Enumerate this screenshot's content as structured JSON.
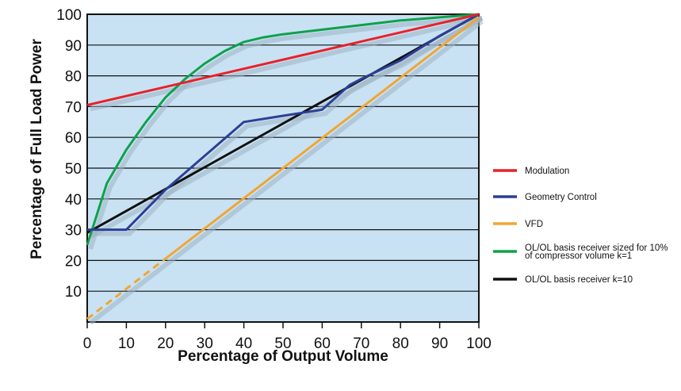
{
  "chart_data": {
    "type": "line",
    "xlabel": "Percentage of Output Volume",
    "ylabel": "Percentage of Full Load Power",
    "xlim": [
      0,
      100
    ],
    "ylim": [
      0,
      100
    ],
    "x_ticks": [
      "0",
      "10",
      "20",
      "30",
      "40",
      "50",
      "60",
      "70",
      "80",
      "90",
      "100"
    ],
    "y_ticks": [
      "10",
      "20",
      "30",
      "40",
      "50",
      "60",
      "70",
      "80",
      "90",
      "100"
    ],
    "grid": "horizontal",
    "plot_background": "#c8e2f3",
    "legend_position": "right",
    "series": [
      {
        "name": "Modulation",
        "color": "#e8212a",
        "points": [
          [
            0,
            70.5
          ],
          [
            100,
            100
          ]
        ]
      },
      {
        "name": "Geometry Control",
        "color": "#2c3f96",
        "points": [
          [
            0,
            30
          ],
          [
            10,
            30
          ],
          [
            20,
            43
          ],
          [
            30,
            54
          ],
          [
            40,
            65
          ],
          [
            50,
            67
          ],
          [
            60,
            69
          ],
          [
            67,
            77
          ],
          [
            70,
            79
          ],
          [
            80,
            85
          ],
          [
            90,
            93
          ],
          [
            100,
            100
          ]
        ]
      },
      {
        "name": "VFD",
        "color": "#f2a532",
        "dashed_until_x": 20,
        "points": [
          [
            0,
            1
          ],
          [
            100,
            99
          ]
        ]
      },
      {
        "name": "OL/OL basis receiver sized for 10% of compressor volume k=1",
        "label_lines": [
          "OL/OL basis receiver sized for 10%",
          "of compressor volume k=1"
        ],
        "color": "#0ea14b",
        "points": [
          [
            0,
            25
          ],
          [
            2,
            33
          ],
          [
            5,
            45
          ],
          [
            10,
            56
          ],
          [
            15,
            65
          ],
          [
            20,
            73
          ],
          [
            25,
            79
          ],
          [
            30,
            84
          ],
          [
            35,
            88
          ],
          [
            40,
            91
          ],
          [
            45,
            92.5
          ],
          [
            50,
            93.5
          ],
          [
            60,
            95
          ],
          [
            70,
            96.5
          ],
          [
            80,
            98
          ],
          [
            90,
            99
          ],
          [
            100,
            100
          ]
        ]
      },
      {
        "name": "OL/OL basis receiver k=10",
        "color": "#111111",
        "points": [
          [
            0,
            29
          ],
          [
            100,
            100
          ]
        ]
      }
    ]
  }
}
